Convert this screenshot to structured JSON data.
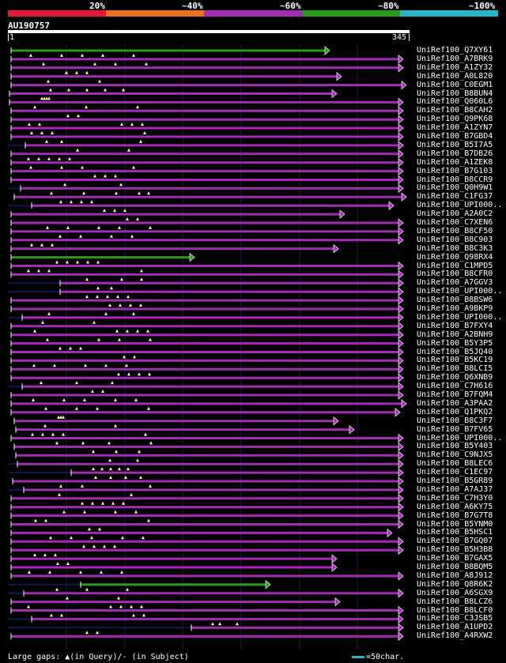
{
  "legend": {
    "labels": [
      "20%",
      "~40%",
      "~60%",
      "~80%",
      "~100%"
    ],
    "colors": [
      "#e8173a",
      "#ec6f1c",
      "#a42bb5",
      "#2a9a1a",
      "#25b6c8"
    ]
  },
  "query": {
    "id": "AU190757",
    "start": "1",
    "end": "345"
  },
  "colors": {
    "purple": "#a42bb5",
    "green": "#2a9a1a",
    "navy": "#101a52",
    "gap": "#ffffb0"
  },
  "hits": [
    {
      "id": "UniRef100_Q7XY61",
      "color": "green"
    },
    {
      "id": "UniRef100_A7BRK9",
      "color": "purple"
    },
    {
      "id": "UniRef100_A1ZY32",
      "color": "purple"
    },
    {
      "id": "UniRef100_A0L820",
      "color": "purple"
    },
    {
      "id": "UniRef100_C0EGM1",
      "color": "purple"
    },
    {
      "id": "UniRef100_B8BUN4",
      "color": "purple"
    },
    {
      "id": "UniRef100_Q060L6",
      "color": "purple"
    },
    {
      "id": "UniRef100_B8CAH2",
      "color": "purple"
    },
    {
      "id": "UniRef100_Q9PK68",
      "color": "purple"
    },
    {
      "id": "UniRef100_A1ZYN7",
      "color": "purple"
    },
    {
      "id": "UniRef100_B7GBD4",
      "color": "purple"
    },
    {
      "id": "UniRef100_B5I7A5",
      "color": "purple"
    },
    {
      "id": "UniRef100_B7DB26",
      "color": "purple"
    },
    {
      "id": "UniRef100_A1ZEK8",
      "color": "purple"
    },
    {
      "id": "UniRef100_B7G103",
      "color": "purple"
    },
    {
      "id": "UniRef100_B8CCR9",
      "color": "purple"
    },
    {
      "id": "UniRef100_Q0H9W1",
      "color": "purple"
    },
    {
      "id": "UniRef100_C1FG37",
      "color": "purple"
    },
    {
      "id": "UniRef100_UPI000..",
      "color": "purple"
    },
    {
      "id": "UniRef100_A2A0C2",
      "color": "purple"
    },
    {
      "id": "UniRef100_C7XEN6",
      "color": "purple"
    },
    {
      "id": "UniRef100_B8CF50",
      "color": "purple"
    },
    {
      "id": "UniRef100_B8C903",
      "color": "purple"
    },
    {
      "id": "UniRef100_B8C3K3",
      "color": "purple"
    },
    {
      "id": "UniRef100_Q98RX4",
      "color": "green"
    },
    {
      "id": "UniRef100_C1MPD5",
      "color": "purple"
    },
    {
      "id": "UniRef100_B8CFR0",
      "color": "purple"
    },
    {
      "id": "UniRef100_A7GGV3",
      "color": "purple"
    },
    {
      "id": "UniRef100_UPI000..",
      "color": "purple"
    },
    {
      "id": "UniRef100_B8BSW6",
      "color": "purple"
    },
    {
      "id": "UniRef100_A9BKP9",
      "color": "purple"
    },
    {
      "id": "UniRef100_UPI000..",
      "color": "purple"
    },
    {
      "id": "UniRef100_B7FXY4",
      "color": "purple"
    },
    {
      "id": "UniRef100_A2BNH9",
      "color": "purple"
    },
    {
      "id": "UniRef100_B5Y3P5",
      "color": "purple"
    },
    {
      "id": "UniRef100_B5JQ40",
      "color": "purple"
    },
    {
      "id": "UniRef100_B5KC19",
      "color": "purple"
    },
    {
      "id": "UniRef100_B8LCI5",
      "color": "purple"
    },
    {
      "id": "UniRef100_Q6XNB9",
      "color": "purple"
    },
    {
      "id": "UniRef100_C7H616",
      "color": "purple"
    },
    {
      "id": "UniRef100_B7FQM4",
      "color": "purple"
    },
    {
      "id": "UniRef100_A3PAA2",
      "color": "purple"
    },
    {
      "id": "UniRef100_Q1PKQ2",
      "color": "purple"
    },
    {
      "id": "UniRef100_B8C3F7",
      "color": "purple"
    },
    {
      "id": "UniRef100_B7FV65",
      "color": "purple"
    },
    {
      "id": "UniRef100_UPI000..",
      "color": "purple"
    },
    {
      "id": "UniRef100_B5Y403",
      "color": "purple"
    },
    {
      "id": "UniRef100_C9NJX5",
      "color": "purple"
    },
    {
      "id": "UniRef100_B8LEC6",
      "color": "purple"
    },
    {
      "id": "UniRef100_C1EC97",
      "color": "purple"
    },
    {
      "id": "UniRef100_B5GR89",
      "color": "purple"
    },
    {
      "id": "UniRef100_A7AJ37",
      "color": "purple"
    },
    {
      "id": "UniRef100_C7H3Y0",
      "color": "purple"
    },
    {
      "id": "UniRef100_A6KY75",
      "color": "purple"
    },
    {
      "id": "UniRef100_B7G7T8",
      "color": "purple"
    },
    {
      "id": "UniRef100_B5YNM0",
      "color": "purple"
    },
    {
      "id": "UniRef100_B5HSC1",
      "color": "purple"
    },
    {
      "id": "UniRef100_B7GQ07",
      "color": "purple"
    },
    {
      "id": "UniRef100_B5H3B8",
      "color": "purple"
    },
    {
      "id": "UniRef100_B7GAX5",
      "color": "purple"
    },
    {
      "id": "UniRef100_B8BQM5",
      "color": "purple"
    },
    {
      "id": "UniRef100_A8J912",
      "color": "purple"
    },
    {
      "id": "UniRef100_Q8R6K2",
      "color": "green"
    },
    {
      "id": "UniRef100_A6SGX9",
      "color": "purple"
    },
    {
      "id": "UniRef100_B8LCZ6",
      "color": "purple"
    },
    {
      "id": "UniRef100_B8LCF0",
      "color": "purple"
    },
    {
      "id": "UniRef100_C3JSB5",
      "color": "purple"
    },
    {
      "id": "UniRef100_A1UPD2",
      "color": "purple"
    },
    {
      "id": "UniRef100_A4RXW2",
      "color": "purple"
    }
  ],
  "footer": {
    "gaps_text": "Large gaps: ▲(in Query)/- (in Subject)",
    "scale_text": "=50char."
  }
}
